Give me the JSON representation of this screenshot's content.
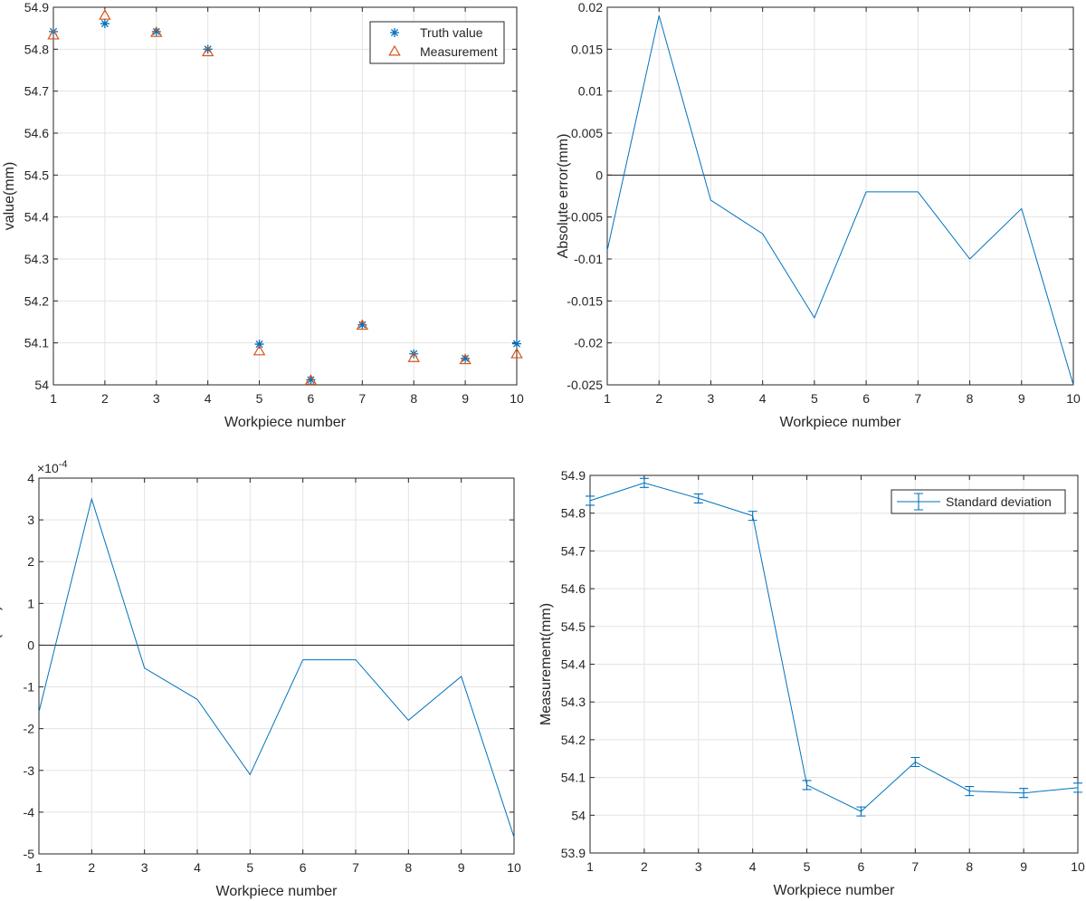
{
  "chart_data": [
    {
      "type": "scatter",
      "xlabel": "Workpiece number",
      "ylabel": "value(mm)",
      "xlim": [
        1,
        10
      ],
      "ylim": [
        54,
        54.9
      ],
      "xticks": [
        "1",
        "2",
        "3",
        "4",
        "5",
        "6",
        "7",
        "8",
        "9",
        "10"
      ],
      "yticks": [
        "54",
        "54.1",
        "54.2",
        "54.3",
        "54.4",
        "54.5",
        "54.6",
        "54.7",
        "54.8",
        "54.9"
      ],
      "grid": true,
      "legend_position": "top-right",
      "x": [
        1,
        2,
        3,
        4,
        5,
        6,
        7,
        8,
        9,
        10
      ],
      "series": [
        {
          "name": "Truth value",
          "marker": "asterisk",
          "color": "#0072BD",
          "values": [
            54.842,
            54.861,
            54.842,
            54.8,
            54.097,
            54.012,
            54.143,
            54.074,
            54.063,
            54.098
          ]
        },
        {
          "name": "Measurement",
          "marker": "triangle",
          "color": "#D95319",
          "values": [
            54.833,
            54.88,
            54.839,
            54.793,
            54.08,
            54.01,
            54.141,
            54.064,
            54.059,
            54.073
          ]
        }
      ]
    },
    {
      "type": "line",
      "xlabel": "Workpiece number",
      "ylabel": "Absolute error(mm)",
      "xlim": [
        1,
        10
      ],
      "ylim": [
        -0.025,
        0.02
      ],
      "xticks": [
        "1",
        "2",
        "3",
        "4",
        "5",
        "6",
        "7",
        "8",
        "9",
        "10"
      ],
      "yticks": [
        "-0.025",
        "-0.02",
        "-0.015",
        "-0.01",
        "-0.005",
        "0",
        "0.005",
        "0.01",
        "0.015",
        "0.02"
      ],
      "grid": true,
      "zero_line": true,
      "x": [
        1,
        2,
        3,
        4,
        5,
        6,
        7,
        8,
        9,
        10
      ],
      "series": [
        {
          "name": "Absolute error",
          "color": "#0072BD",
          "values": [
            -0.009,
            0.019,
            -0.003,
            -0.007,
            -0.017,
            -0.002,
            -0.002,
            -0.01,
            -0.004,
            -0.025
          ]
        }
      ]
    },
    {
      "type": "line",
      "xlabel": "Workpiece number",
      "ylabel": "Relative error(mm)",
      "exponent_base": "×10",
      "exponent_power": "-4",
      "xlim": [
        1,
        10
      ],
      "ylim": [
        -5,
        4
      ],
      "xticks": [
        "1",
        "2",
        "3",
        "4",
        "5",
        "6",
        "7",
        "8",
        "9",
        "10"
      ],
      "yticks": [
        "-5",
        "-4",
        "-3",
        "-2",
        "-1",
        "0",
        "1",
        "2",
        "3",
        "4"
      ],
      "grid": true,
      "zero_line": true,
      "x": [
        1,
        2,
        3,
        4,
        5,
        6,
        7,
        8,
        9,
        10
      ],
      "series": [
        {
          "name": "Relative error",
          "color": "#0072BD",
          "values": [
            -1.6,
            3.5,
            -0.55,
            -1.3,
            -3.1,
            -0.35,
            -0.35,
            -1.8,
            -0.75,
            -4.6
          ]
        }
      ]
    },
    {
      "type": "line",
      "xlabel": "Workpiece number",
      "ylabel": "Measurement(mm)",
      "xlim": [
        1,
        10
      ],
      "ylim": [
        53.9,
        54.9
      ],
      "xticks": [
        "1",
        "2",
        "3",
        "4",
        "5",
        "6",
        "7",
        "8",
        "9",
        "10"
      ],
      "yticks": [
        "53.9",
        "54",
        "54.1",
        "54.2",
        "54.3",
        "54.4",
        "54.5",
        "54.6",
        "54.7",
        "54.8",
        "54.9"
      ],
      "grid": true,
      "legend_position": "top-right",
      "x": [
        1,
        2,
        3,
        4,
        5,
        6,
        7,
        8,
        9,
        10
      ],
      "series": [
        {
          "name": "Standard deviation",
          "color": "#0072BD",
          "error_bars": true,
          "values": [
            54.833,
            54.88,
            54.839,
            54.793,
            54.08,
            54.01,
            54.141,
            54.064,
            54.059,
            54.073
          ],
          "errors": [
            0.012,
            0.012,
            0.012,
            0.012,
            0.012,
            0.012,
            0.012,
            0.012,
            0.012,
            0.012
          ]
        }
      ]
    }
  ]
}
